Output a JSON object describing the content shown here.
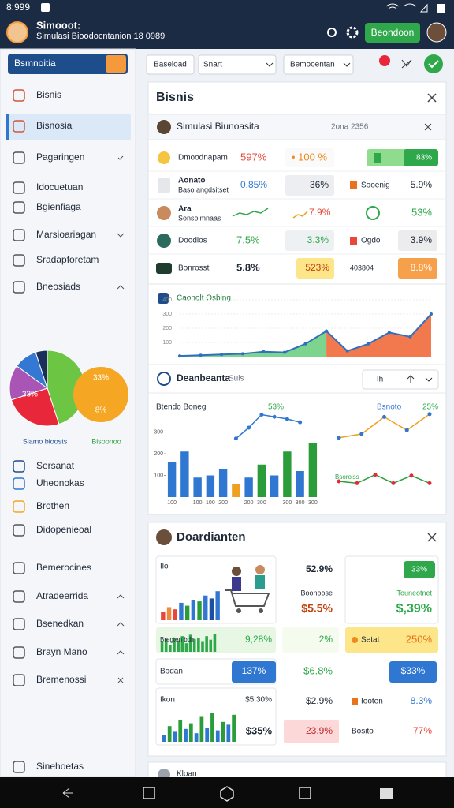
{
  "status_bar": {
    "time": "8:999"
  },
  "app_bar": {
    "title": "Simooot:",
    "subtitle": "Simulasi Bioodocntanion 18 0989",
    "button": "Beondoon"
  },
  "sidebar": {
    "selector": "Bsmnoitia",
    "menu": [
      "Bisnis",
      "Bisnosia",
      "Pagaringen",
      "Idocuetuan",
      "Bgienfiaga",
      "Marsioariagan",
      "Sradapforetam",
      "Bneosiads"
    ],
    "pie": {
      "type": "pie",
      "values": [
        45,
        25,
        15,
        10,
        5
      ],
      "colors": [
        "#6cc644",
        "#e8283a",
        "#a855b5",
        "#3478d4",
        "#1c2f5c"
      ],
      "label": "33%"
    },
    "pie_2": {
      "labels": [
        "33%",
        "8%"
      ],
      "color": "#f5a623"
    },
    "captions": [
      "Siamo bioosts",
      "Bisoonoo"
    ],
    "menu_2": [
      "Sersanat",
      "Uheonokas",
      "Brothen",
      "Didopenieoal",
      "Bemerocines",
      "Atradeerrida",
      "Bsenedkan",
      "Brayn Mano",
      "Bremenossi",
      "Sinehoetas"
    ]
  },
  "toolbar": {
    "buttons": [
      "Baseload",
      "Snart",
      "Bemooentan"
    ]
  },
  "panel_1": {
    "title": "Bisnis",
    "subheader": {
      "title": "Simulasi Biunoasita",
      "meta": "2ona 2356"
    },
    "rows": [
      {
        "name": "Dmoodnapam",
        "cells": [
          "597%",
          "• 100 %",
          "83%"
        ]
      },
      {
        "name": "Aonato",
        "sub": "Baso angdsitset",
        "cells": [
          "0.85%",
          "36%",
          "Sooenig",
          "5.9%"
        ]
      },
      {
        "name": "Ara",
        "sub": "Sonsoimnaas",
        "cells": [
          "7.9%",
          "53%"
        ],
        "spark_1": [
          3,
          5,
          4,
          6,
          5,
          8
        ],
        "spark_2": [
          2,
          4,
          3,
          6
        ]
      },
      {
        "name": "Doodios",
        "cells": [
          "7.5%",
          "3.3%",
          "Ogdo",
          "3.9%"
        ]
      },
      {
        "name": "Bonrosst",
        "cells": [
          "5.8%",
          "523%",
          "403804",
          "8.8%"
        ]
      }
    ],
    "area_chart": {
      "type": "area",
      "title": "Caonolt Osbing",
      "line_color": "#2f6fc0",
      "series": [
        {
          "color": "#6fcf7f",
          "values": [
            5,
            10,
            15,
            20,
            35,
            30,
            90,
            180,
            null,
            null,
            null,
            null,
            null
          ]
        },
        {
          "color": "#f06a3a",
          "values": [
            null,
            null,
            null,
            null,
            null,
            null,
            null,
            180,
            40,
            90,
            170,
            140,
            300
          ]
        }
      ],
      "ylim": [
        0,
        400
      ],
      "yticks": [
        100,
        200,
        300,
        400
      ]
    },
    "section": {
      "title": "Deanbeanta",
      "hint": "Suls",
      "button": "Ih"
    },
    "bar_chart": {
      "type": "bar",
      "title": "Btendo Boneg",
      "label": "53%",
      "categories": [
        "100",
        null,
        "100",
        "100",
        "200",
        null,
        "200",
        "300",
        null,
        "300",
        "300",
        "300"
      ],
      "values": [
        160,
        210,
        90,
        100,
        130,
        60,
        90,
        150,
        100,
        210,
        120,
        250
      ],
      "colors": [
        "#2f77d1",
        "#2f77d1",
        "#2f77d1",
        "#2f77d1",
        "#2f77d1",
        "#f0a020",
        "#2f77d1",
        "#2a9d3a",
        "#2f77d1",
        "#2a9d3a",
        "#2f77d1",
        "#2a9d3a"
      ],
      "line": {
        "color": "#2f77d1",
        "values": [
          null,
          null,
          null,
          null,
          null,
          270,
          320,
          380,
          370,
          360,
          345,
          null
        ]
      },
      "ylim": [
        0,
        400
      ],
      "yticks": [
        100,
        200,
        300
      ]
    },
    "line_chart": {
      "type": "line",
      "title": "Bsnoto",
      "label": "25%",
      "label_2": "Bsoroiss",
      "series": [
        {
          "color": "#f0a020",
          "marker_color": "#2f77d1",
          "values": [
            71,
            75,
            93,
            79,
            96
          ]
        },
        {
          "color": "#2a9d3a",
          "marker_color": "#e8283a",
          "values": [
            25,
            23,
            32,
            23,
            31,
            23
          ]
        }
      ],
      "ylim": [
        0,
        100
      ]
    }
  },
  "panel_2": {
    "title": "Doardianten",
    "cards": {
      "a1": {
        "label": "Ilo",
        "bars": {
          "values": [
            12,
            18,
            15,
            24,
            20,
            28,
            26,
            34,
            30,
            40
          ],
          "colors": [
            "#e8473a",
            "#f08a3a",
            "#e8473a",
            "#2f77d1",
            "#2a9d3a",
            "#2f77d1",
            "#2a9d3a",
            "#2f77d1",
            "#1c4fa0",
            "#2f77d1"
          ],
          "ylim": [
            0,
            50
          ]
        }
      },
      "b1": [
        "52.9%",
        "Boonoose",
        "$5.5%"
      ],
      "c1": [
        "33%",
        "Touneotnet",
        "$,39%"
      ],
      "a2": {
        "label": "Bregten bdin",
        "value": "9,28%",
        "bars": {
          "values": [
            14,
            18,
            10,
            20,
            16,
            22,
            12,
            24,
            18,
            20,
            15,
            22,
            17,
            25
          ],
          "colors": [
            "#2ea84a"
          ],
          "ylim": [
            0,
            30
          ]
        }
      },
      "b2": "2%",
      "c2": [
        "Setat",
        "250%"
      ],
      "a3": [
        "Bodan",
        "137%"
      ],
      "b3": "$6.8%",
      "c3": "$33%",
      "a4": {
        "label": "Ikon",
        "value": "$5.30%",
        "value_2": "$35%",
        "bars": {
          "values": [
            10,
            22,
            14,
            30,
            18,
            26,
            12,
            35,
            20,
            40,
            16,
            28,
            24,
            38
          ],
          "colors": [
            "#2f77d1",
            "#2a9d3a"
          ],
          "ylim": [
            0,
            50
          ]
        }
      },
      "b4": [
        "$2.9%",
        "23.9%"
      ],
      "c4": [
        "Iooten",
        "8.3%",
        "Bosito",
        "77%"
      ]
    }
  },
  "panel_3": {
    "title": "Kloan"
  }
}
